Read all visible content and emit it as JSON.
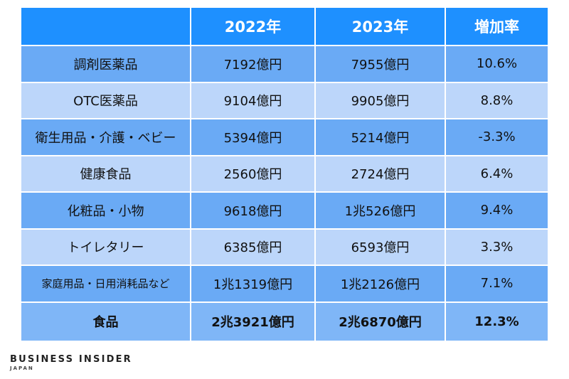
{
  "table": {
    "headers": [
      "",
      "2022年",
      "2023年",
      "増加率"
    ],
    "rows": [
      {
        "category": "調剤医薬品",
        "y2022": "7192億円",
        "y2023": "7955億円",
        "rate": "10.6%"
      },
      {
        "category": "OTC医薬品",
        "y2022": "9104億円",
        "y2023": "9905億円",
        "rate": "8.8%"
      },
      {
        "category": "衛生用品・介護・ベビー",
        "y2022": "5394億円",
        "y2023": "5214億円",
        "rate": "-3.3%"
      },
      {
        "category": "健康食品",
        "y2022": "2560億円",
        "y2023": "2724億円",
        "rate": "6.4%"
      },
      {
        "category": "化粧品・小物",
        "y2022": "9618億円",
        "y2023": "1兆526億円",
        "rate": "9.4%"
      },
      {
        "category": "トイレタリー",
        "y2022": "6385億円",
        "y2023": "6593億円",
        "rate": "3.3%"
      },
      {
        "category": "家庭用品・日用消耗品など",
        "y2022": "1兆1319億円",
        "y2023": "1兆2126億円",
        "rate": "7.1%"
      },
      {
        "category": "食品",
        "y2022": "2兆3921億円",
        "y2023": "2兆6870億円",
        "rate": "12.3%"
      }
    ]
  },
  "logo": {
    "main": "BUSINESS INSIDER",
    "sub": "JAPAN"
  },
  "colors": {
    "header": "#1e90ff",
    "row_dark": "#6aaaf5",
    "row_light": "#bcd6fa"
  }
}
